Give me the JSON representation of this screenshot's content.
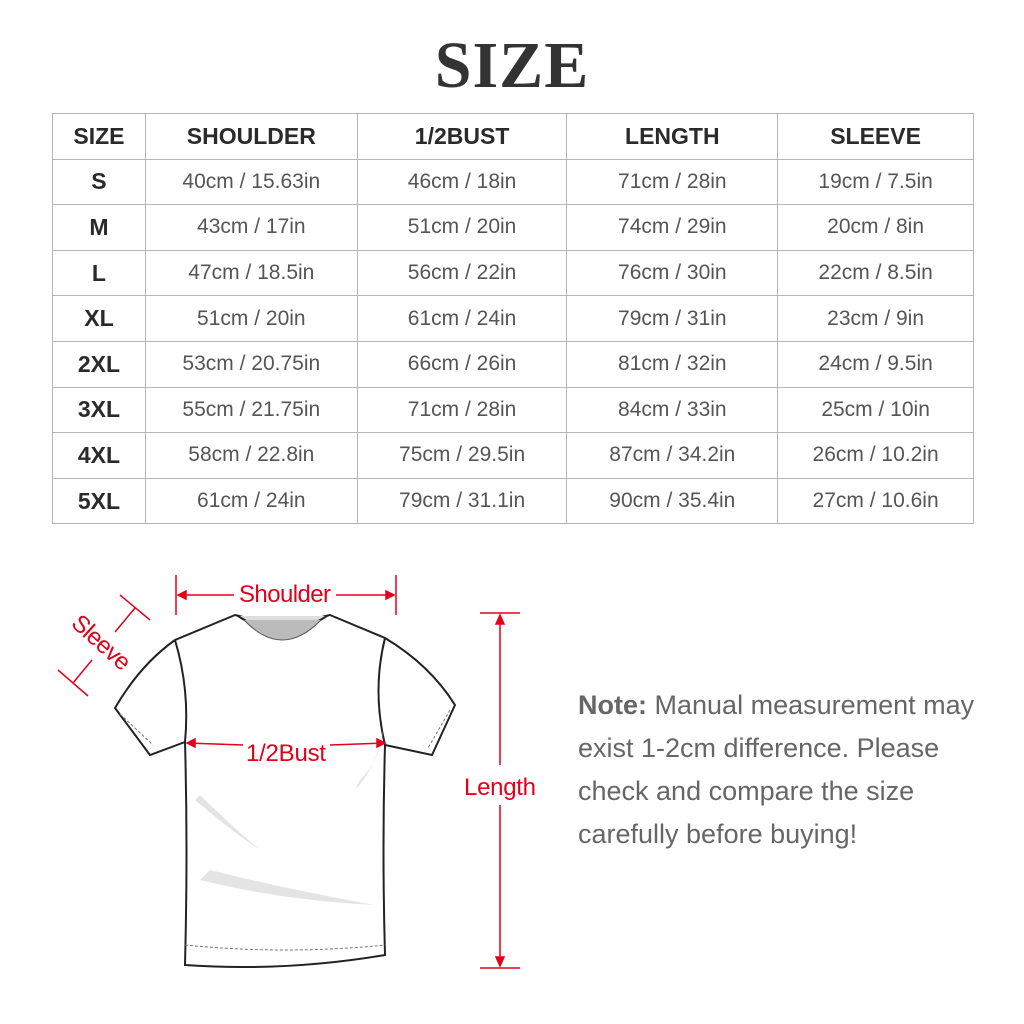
{
  "title": "SIZE",
  "table": {
    "headers": [
      "SIZE",
      "SHOULDER",
      "1/2BUST",
      "LENGTH",
      "SLEEVE"
    ],
    "rows": [
      [
        "S",
        "40cm / 15.63in",
        "46cm / 18in",
        "71cm / 28in",
        "19cm / 7.5in"
      ],
      [
        "M",
        "43cm / 17in",
        "51cm / 20in",
        "74cm / 29in",
        "20cm / 8in"
      ],
      [
        "L",
        "47cm / 18.5in",
        "56cm / 22in",
        "76cm / 30in",
        "22cm / 8.5in"
      ],
      [
        "XL",
        "51cm / 20in",
        "61cm / 24in",
        "79cm / 31in",
        "23cm / 9in"
      ],
      [
        "2XL",
        "53cm / 20.75in",
        "66cm / 26in",
        "81cm / 32in",
        "24cm / 9.5in"
      ],
      [
        "3XL",
        "55cm / 21.75in",
        "71cm / 28in",
        "84cm / 33in",
        "25cm / 10in"
      ],
      [
        "4XL",
        "58cm / 22.8in",
        "75cm / 29.5in",
        "87cm / 34.2in",
        "26cm / 10.2in"
      ],
      [
        "5XL",
        "61cm / 24in",
        "79cm / 31.1in",
        "90cm / 35.4in",
        "27cm / 10.6in"
      ]
    ]
  },
  "diagram": {
    "labels": {
      "shoulder": "Shoulder",
      "sleeve": "Sleeve",
      "bust": "1/2Bust",
      "length": "Length"
    },
    "accent_color": "#e3001b"
  },
  "note": {
    "label": "Note:",
    "text": "Manual measurement may exist 1-2cm difference. Please check and compare the size carefully before buying!"
  }
}
